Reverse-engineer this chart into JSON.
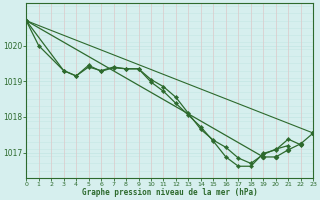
{
  "background_color": "#d6efee",
  "grid_color_h": "#c8e8e6",
  "grid_color_v": "#dcc8c8",
  "line_color": "#2d6a2d",
  "xlim": [
    0,
    23
  ],
  "ylim": [
    1016.3,
    1021.2
  ],
  "yticks": [
    1017,
    1018,
    1019,
    1020
  ],
  "xticks": [
    0,
    1,
    2,
    3,
    4,
    5,
    6,
    7,
    8,
    9,
    10,
    11,
    12,
    13,
    14,
    15,
    16,
    17,
    18,
    19,
    20,
    21,
    22,
    23
  ],
  "xlabel": "Graphe pression niveau de la mer (hPa)",
  "series1": {
    "x": [
      0,
      1,
      3,
      4,
      5,
      6,
      7,
      8,
      9,
      10,
      11,
      12,
      13,
      14,
      15,
      16,
      17,
      18,
      19,
      20,
      21
    ],
    "y": [
      1020.7,
      1020.0,
      1019.3,
      1019.15,
      1019.4,
      1019.3,
      1019.4,
      1019.35,
      1019.35,
      1019.05,
      1018.85,
      1018.55,
      1018.1,
      1017.65,
      1017.35,
      1017.15,
      1016.85,
      1016.7,
      1016.95,
      1017.1,
      1017.2
    ]
  },
  "series2": {
    "x": [
      0,
      3,
      4,
      5,
      6,
      7,
      8,
      9,
      10,
      11,
      12,
      13,
      14,
      15,
      16,
      17,
      18,
      19,
      20,
      21,
      22
    ],
    "y": [
      1020.7,
      1019.3,
      1019.15,
      1019.45,
      1019.28,
      1019.38,
      1019.35,
      1019.35,
      1018.98,
      1018.72,
      1018.38,
      1018.05,
      1017.72,
      1017.32,
      1016.88,
      1016.62,
      1016.62,
      1016.98,
      1017.08,
      1017.38,
      1017.22
    ]
  },
  "series3_straight": {
    "x": [
      0,
      23
    ],
    "y": [
      1020.7,
      1017.55
    ]
  },
  "series4_vshape": {
    "x": [
      0,
      19,
      20,
      21,
      22,
      23
    ],
    "y": [
      1020.7,
      1016.88,
      1016.88,
      1017.08,
      1017.25,
      1017.55
    ]
  }
}
